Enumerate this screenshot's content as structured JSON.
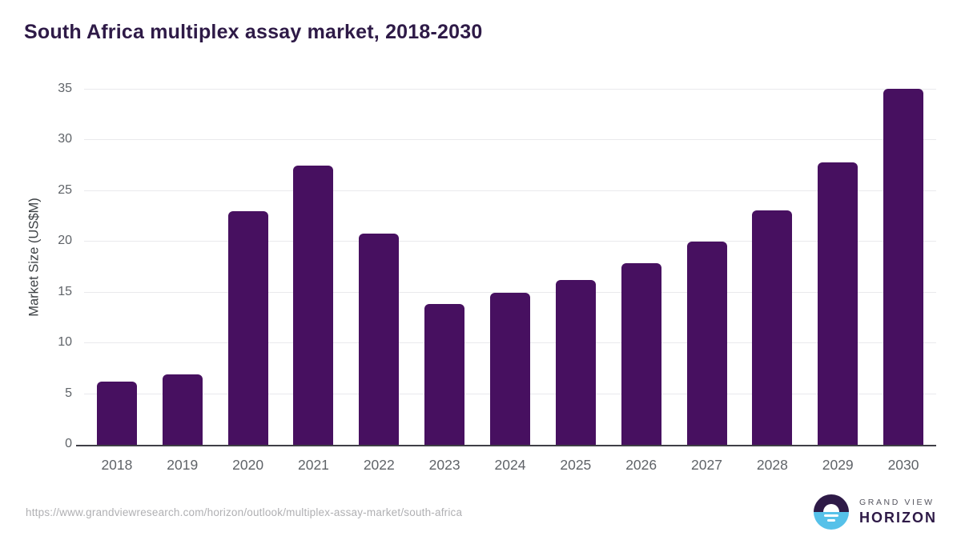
{
  "title": "South Africa multiplex assay market, 2018-2030",
  "chart_data": {
    "type": "bar",
    "title": "South Africa multiplex assay market, 2018-2030",
    "categories": [
      "2018",
      "2019",
      "2020",
      "2021",
      "2022",
      "2023",
      "2024",
      "2025",
      "2026",
      "2027",
      "2028",
      "2029",
      "2030"
    ],
    "values": [
      6.2,
      6.9,
      23.0,
      27.5,
      20.8,
      13.9,
      15.0,
      16.2,
      17.9,
      20.0,
      23.1,
      27.8,
      35.1
    ],
    "xlabel": "",
    "ylabel": "Market Size (US$M)",
    "ylim": [
      0,
      35
    ],
    "yticks": [
      0,
      5,
      10,
      15,
      20,
      25,
      30,
      35
    ],
    "grid": true,
    "legend": false,
    "bar_color": "#471060"
  },
  "colors": {
    "bar": "#471060",
    "title": "#2e1a47",
    "axis_text": "#5f6368",
    "gridline": "#e9e9ec",
    "axis_line": "#3f3f46",
    "url_text": "#b0b0b3",
    "logo_blue": "#56c1e9",
    "logo_dark": "#2e1a47"
  },
  "footer": {
    "source_url": "https://www.grandviewresearch.com/horizon/outlook/multiplex-assay-market/south-africa",
    "logo": {
      "top_text": "GRAND VIEW",
      "bottom_text": "HORIZON",
      "mark_icon": "sun-over-horizon-icon"
    }
  }
}
